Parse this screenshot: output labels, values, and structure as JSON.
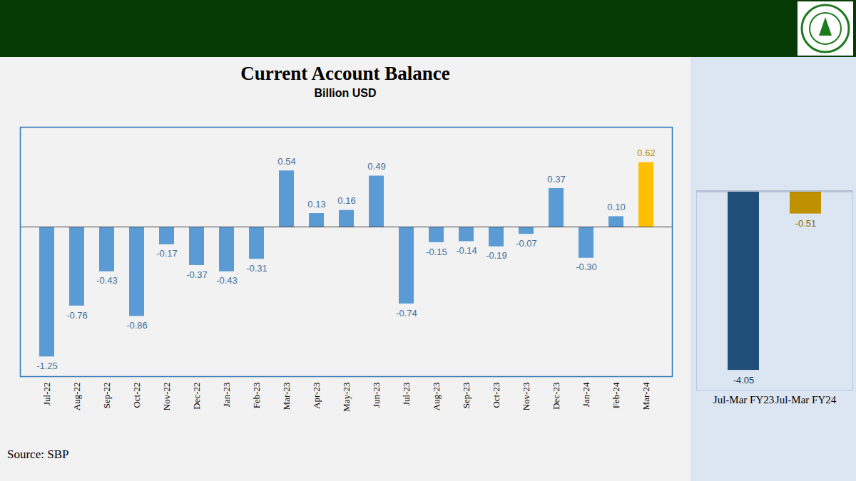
{
  "chart_data": [
    {
      "type": "bar",
      "title": "Current Account Balance",
      "subtitle": "Billion USD",
      "caption": "Source: SBP",
      "categories": [
        "Jul-22",
        "Aug-22",
        "Sep-22",
        "Oct-22",
        "Nov-22",
        "Dec-22",
        "Jan-23",
        "Feb-23",
        "Mar-23",
        "Apr-23",
        "May-23",
        "Jun-23",
        "Jul-23",
        "Aug-23",
        "Sep-23",
        "Oct-23",
        "Nov-23",
        "Dec-23",
        "Jan-24",
        "Feb-24",
        "Mar-24"
      ],
      "values": [
        -1.25,
        -0.76,
        -0.43,
        -0.86,
        -0.17,
        -0.37,
        -0.43,
        -0.31,
        0.54,
        0.13,
        0.16,
        0.49,
        -0.74,
        -0.15,
        -0.14,
        -0.19,
        -0.07,
        0.37,
        -0.3,
        0.1,
        0.62
      ],
      "value_labels": [
        "-1.25",
        "-0.76",
        "-0.43",
        "-0.86",
        "-0.17",
        "-0.37",
        "-0.43",
        "-0.31",
        "0.54",
        "0.13",
        "0.16",
        "0.49",
        "-0.74",
        "-0.15",
        "-0.14",
        "-0.19",
        "-0.07",
        "0.37",
        "-0.30",
        "0.10",
        "0.62"
      ],
      "colors": [
        "#5b9bd5",
        "#5b9bd5",
        "#5b9bd5",
        "#5b9bd5",
        "#5b9bd5",
        "#5b9bd5",
        "#5b9bd5",
        "#5b9bd5",
        "#5b9bd5",
        "#5b9bd5",
        "#5b9bd5",
        "#5b9bd5",
        "#5b9bd5",
        "#5b9bd5",
        "#5b9bd5",
        "#5b9bd5",
        "#5b9bd5",
        "#5b9bd5",
        "#5b9bd5",
        "#5b9bd5",
        "#ffc000"
      ],
      "ylim": [
        -1.44,
        0.96
      ],
      "data_labels": true,
      "tick_labels": "x",
      "grid": false
    },
    {
      "type": "bar",
      "categories": [
        "Jul-Mar FY23",
        "Jul-Mar FY24"
      ],
      "values": [
        -4.05,
        -0.51
      ],
      "value_labels": [
        "-4.05",
        "-0.51"
      ],
      "colors": [
        "#1f4e79",
        "#bf9000"
      ],
      "ylim": [
        -4.5,
        0
      ],
      "data_labels": true,
      "tick_labels": "x",
      "grid": false
    }
  ]
}
